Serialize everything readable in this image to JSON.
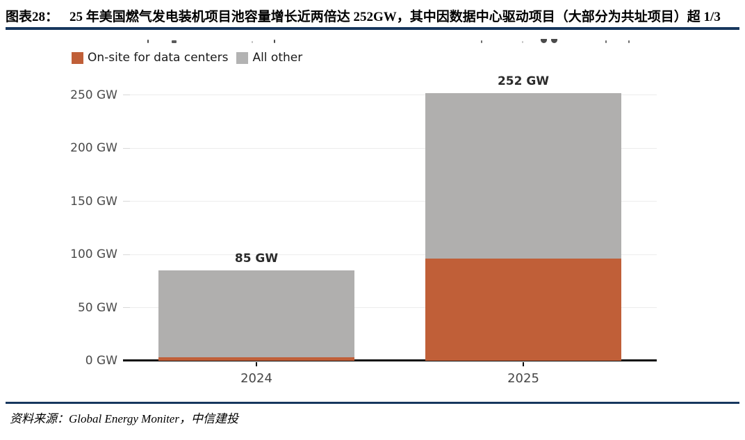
{
  "header": {
    "figure_label": "图表28：",
    "title": "25 年美国燃气发电装机项目池容量增长近两倍达 252GW，其中因数据中心驱动项目（大部分为共址项目）超 1/3"
  },
  "legend": [
    {
      "name": "On-site for data centers",
      "color": "#c05f38"
    },
    {
      "name": "All other",
      "color": "#b3b3b3"
    }
  ],
  "chart_data": {
    "type": "bar",
    "stacked": true,
    "categories": [
      "2024",
      "2025"
    ],
    "series": [
      {
        "name": "On-site for data centers",
        "color": "#c05f38",
        "values": [
          3,
          96
        ]
      },
      {
        "name": "All other",
        "color": "#b0afae",
        "values": [
          82,
          156
        ]
      }
    ],
    "totals": [
      85,
      252
    ],
    "total_labels": [
      "85 GW",
      "252 GW"
    ],
    "yticks": [
      0,
      50,
      100,
      150,
      200,
      250
    ],
    "ytick_labels": [
      "0 GW",
      "50 GW",
      "100 GW",
      "150 GW",
      "200 GW",
      "250 GW"
    ],
    "ylim": [
      0,
      267
    ],
    "xlabel": "",
    "ylabel": "",
    "grid": true,
    "legend_position": "top-left"
  },
  "footer": {
    "source": "资料来源：Global Energy Moniter，中信建投"
  },
  "colors": {
    "accent_navy": "#17375e",
    "axis_black": "#0a0a0a",
    "grid_gray": "#ececec",
    "orange": "#c05f38",
    "gray": "#b0afae"
  }
}
